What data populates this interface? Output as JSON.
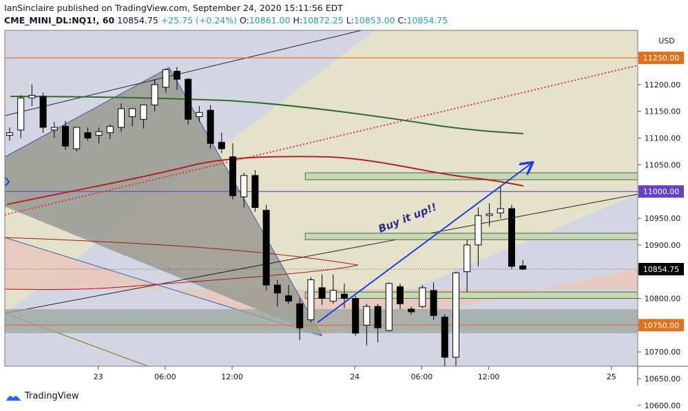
{
  "header": {
    "publisher_line": "IanSinclaire published on TradingView.com, September 24, 2020 15:11:56 EDT",
    "symbol": "CME_MINI_DL:NQ1!, 60",
    "last": "10854.75",
    "change": "+25.75 (+0.24%)",
    "o_label": "O:",
    "o_value": "10861.00",
    "h_label": "H:",
    "h_value": "10872.25",
    "l_label": "L:",
    "l_value": "10853.00",
    "c_label": "C:",
    "c_value": "10854.75"
  },
  "footer": {
    "brand": "TradingView"
  },
  "annotation": "Buy it up!!",
  "colors": {
    "up_candle": "#ffffff",
    "down_candle": "#000000",
    "tan_zone": "#e8e4c8",
    "grey_wedge": "#9a9a92",
    "pink_zone": "#e8c8bc",
    "support_band": "#9aa6a0",
    "ma_green": "#2e6b2e",
    "ma_red": "#b22222",
    "purple_line": "#6a3fc8",
    "orange_line": "#e2711d",
    "arrow_blue": "#1e3fdc",
    "dotted_red": "#e0302a"
  },
  "chart_data": {
    "type": "candlestick",
    "currency": "USD",
    "y_ticks": [
      "11250.00",
      "11200.00",
      "11150.00",
      "11100.00",
      "11050.00",
      "11000.00",
      "10950.00",
      "10900.00",
      "10850.00",
      "10800.00",
      "10750.00",
      "10700.00",
      "10650.00",
      "10600.00"
    ],
    "ylim": [
      10570,
      11290
    ],
    "x_labels": [
      {
        "label": "23",
        "i": 8
      },
      {
        "label": "06:00",
        "i": 14
      },
      {
        "label": "12:00",
        "i": 20
      },
      {
        "label": "24",
        "i": 31
      },
      {
        "label": "06:00",
        "i": 37
      },
      {
        "label": "12:00",
        "i": 43
      },
      {
        "label": "25",
        "i": 54
      }
    ],
    "price_labels": [
      {
        "text": "11250.00",
        "value": 11250,
        "color": "#e2711d"
      },
      {
        "text": "11000.00",
        "value": 11000,
        "color": "#6a3fc8"
      },
      {
        "text": "10854.75",
        "value": 10854.75,
        "color": "#000000"
      },
      {
        "text": "10750.00",
        "value": 10750,
        "color": "#e2711d"
      }
    ],
    "hlines": [
      {
        "value": 11250,
        "color": "#e2711d"
      },
      {
        "value": 11000,
        "color": "#6a3fc8"
      },
      {
        "value": 10750,
        "color": "#e2711d"
      }
    ],
    "candles": [
      {
        "o": 11105,
        "h": 11120,
        "l": 11095,
        "c": 11110
      },
      {
        "o": 11115,
        "h": 11180,
        "l": 11100,
        "c": 11175
      },
      {
        "o": 11175,
        "h": 11200,
        "l": 11160,
        "c": 11180
      },
      {
        "o": 11178,
        "h": 11185,
        "l": 11110,
        "c": 11120
      },
      {
        "o": 11115,
        "h": 11130,
        "l": 11100,
        "c": 11120
      },
      {
        "o": 11122,
        "h": 11132,
        "l": 11078,
        "c": 11085
      },
      {
        "o": 11080,
        "h": 11120,
        "l": 11075,
        "c": 11120
      },
      {
        "o": 11110,
        "h": 11120,
        "l": 11095,
        "c": 11100
      },
      {
        "o": 11105,
        "h": 11120,
        "l": 11090,
        "c": 11112
      },
      {
        "o": 11110,
        "h": 11125,
        "l": 11098,
        "c": 11122
      },
      {
        "o": 11120,
        "h": 11165,
        "l": 11112,
        "c": 11155
      },
      {
        "o": 11140,
        "h": 11150,
        "l": 11122,
        "c": 11155
      },
      {
        "o": 11135,
        "h": 11155,
        "l": 11118,
        "c": 11162
      },
      {
        "o": 11162,
        "h": 11210,
        "l": 11150,
        "c": 11200
      },
      {
        "o": 11195,
        "h": 11230,
        "l": 11185,
        "c": 11228
      },
      {
        "o": 11225,
        "h": 11233,
        "l": 11190,
        "c": 11210
      },
      {
        "o": 11210,
        "h": 11212,
        "l": 11125,
        "c": 11135
      },
      {
        "o": 11140,
        "h": 11160,
        "l": 11130,
        "c": 11148
      },
      {
        "o": 11152,
        "h": 11162,
        "l": 11080,
        "c": 11090
      },
      {
        "o": 11092,
        "h": 11110,
        "l": 11072,
        "c": 11080
      },
      {
        "o": 11065,
        "h": 11090,
        "l": 10985,
        "c": 10992
      },
      {
        "o": 10990,
        "h": 11035,
        "l": 10970,
        "c": 11030
      },
      {
        "o": 11030,
        "h": 11040,
        "l": 10962,
        "c": 10970
      },
      {
        "o": 10965,
        "h": 10975,
        "l": 10815,
        "c": 10825
      },
      {
        "o": 10825,
        "h": 10835,
        "l": 10785,
        "c": 10810
      },
      {
        "o": 10805,
        "h": 10825,
        "l": 10790,
        "c": 10795
      },
      {
        "o": 10790,
        "h": 10800,
        "l": 10722,
        "c": 10745
      },
      {
        "o": 10760,
        "h": 10840,
        "l": 10755,
        "c": 10835
      },
      {
        "o": 10820,
        "h": 10845,
        "l": 10788,
        "c": 10800
      },
      {
        "o": 10795,
        "h": 10845,
        "l": 10790,
        "c": 10815
      },
      {
        "o": 10808,
        "h": 10828,
        "l": 10782,
        "c": 10800
      },
      {
        "o": 10800,
        "h": 10805,
        "l": 10730,
        "c": 10735
      },
      {
        "o": 10750,
        "h": 10790,
        "l": 10712,
        "c": 10785
      },
      {
        "o": 10785,
        "h": 10790,
        "l": 10718,
        "c": 10745
      },
      {
        "o": 10740,
        "h": 10830,
        "l": 10738,
        "c": 10828
      },
      {
        "o": 10822,
        "h": 10828,
        "l": 10780,
        "c": 10790
      },
      {
        "o": 10780,
        "h": 10785,
        "l": 10770,
        "c": 10775
      },
      {
        "o": 10785,
        "h": 10825,
        "l": 10782,
        "c": 10820
      },
      {
        "o": 10815,
        "h": 10830,
        "l": 10760,
        "c": 10768
      },
      {
        "o": 10765,
        "h": 10770,
        "l": 10668,
        "c": 10690
      },
      {
        "o": 10690,
        "h": 10850,
        "l": 10663,
        "c": 10848
      },
      {
        "o": 10850,
        "h": 10910,
        "l": 10812,
        "c": 10900
      },
      {
        "o": 10900,
        "h": 10970,
        "l": 10860,
        "c": 10955
      },
      {
        "o": 10955,
        "h": 10978,
        "l": 10935,
        "c": 10958
      },
      {
        "o": 10960,
        "h": 11010,
        "l": 10950,
        "c": 10968
      },
      {
        "o": 10968,
        "h": 10975,
        "l": 10855,
        "c": 10860
      },
      {
        "o": 10861,
        "h": 10872.25,
        "l": 10853,
        "c": 10854.75
      }
    ]
  }
}
